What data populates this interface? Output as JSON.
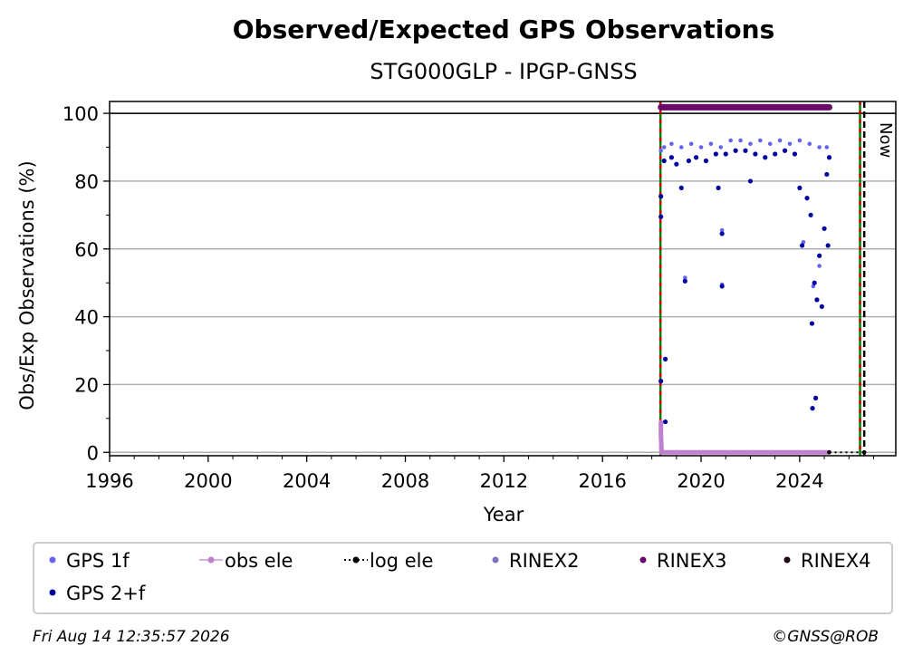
{
  "chart_data": {
    "type": "scatter",
    "title": "Observed/Expected GPS Observations",
    "subtitle": "STG000GLP - IPGP-GNSS",
    "xlabel": "Year",
    "ylabel": "Obs/Exp Observations (%)",
    "xlim": [
      1996,
      2027.9
    ],
    "ylim": [
      -1,
      103.5
    ],
    "x_ticks": [
      1996,
      2000,
      2004,
      2008,
      2012,
      2016,
      2020,
      2024
    ],
    "y_ticks": [
      0,
      20,
      40,
      60,
      80,
      100
    ],
    "grid": "y",
    "reference_line_y": 100,
    "vertical_markers": [
      {
        "x": 2018.35,
        "style": "green-red dashed"
      },
      {
        "x": 2026.45,
        "style": "green-red dashed"
      },
      {
        "x": 2026.62,
        "style": "black dashed",
        "label": "Now"
      }
    ],
    "legend_position": "bottom",
    "series": [
      {
        "name": "GPS 1f",
        "color": "#6464f0",
        "marker": "dot",
        "points": [
          [
            2018.37,
            89
          ],
          [
            2018.5,
            90
          ],
          [
            2018.8,
            91
          ],
          [
            2019.2,
            90
          ],
          [
            2019.6,
            91
          ],
          [
            2020.0,
            90
          ],
          [
            2020.4,
            91
          ],
          [
            2020.8,
            90
          ],
          [
            2021.2,
            92
          ],
          [
            2021.6,
            92
          ],
          [
            2022.0,
            91
          ],
          [
            2022.4,
            92
          ],
          [
            2022.8,
            91
          ],
          [
            2023.2,
            92
          ],
          [
            2023.6,
            91
          ],
          [
            2024.0,
            92
          ],
          [
            2024.4,
            91
          ],
          [
            2024.8,
            90
          ],
          [
            2025.1,
            90
          ],
          [
            2019.35,
            51.5
          ],
          [
            2020.85,
            65.5
          ],
          [
            2020.85,
            49.5
          ],
          [
            2024.15,
            62
          ],
          [
            2024.55,
            49
          ],
          [
            2024.8,
            55
          ]
        ]
      },
      {
        "name": "GPS 2+f",
        "color": "#0000a0",
        "marker": "dot",
        "points": [
          [
            2018.37,
            75.5
          ],
          [
            2018.37,
            69.5
          ],
          [
            2018.37,
            21
          ],
          [
            2018.55,
            27.5
          ],
          [
            2018.55,
            9
          ],
          [
            2018.5,
            86
          ],
          [
            2018.8,
            87
          ],
          [
            2019.0,
            85
          ],
          [
            2019.2,
            78
          ],
          [
            2019.35,
            50.5
          ],
          [
            2019.5,
            86
          ],
          [
            2019.8,
            87
          ],
          [
            2020.2,
            86
          ],
          [
            2020.6,
            88
          ],
          [
            2020.7,
            78
          ],
          [
            2020.85,
            64.5
          ],
          [
            2020.85,
            49
          ],
          [
            2021.0,
            88
          ],
          [
            2021.4,
            89
          ],
          [
            2021.8,
            89
          ],
          [
            2022.0,
            80
          ],
          [
            2022.2,
            88
          ],
          [
            2022.6,
            87
          ],
          [
            2023.0,
            88
          ],
          [
            2023.4,
            89
          ],
          [
            2023.8,
            88
          ],
          [
            2024.0,
            78
          ],
          [
            2024.1,
            61
          ],
          [
            2024.3,
            75
          ],
          [
            2024.45,
            70
          ],
          [
            2024.5,
            38
          ],
          [
            2024.52,
            13
          ],
          [
            2024.6,
            50
          ],
          [
            2024.65,
            16
          ],
          [
            2024.7,
            45
          ],
          [
            2024.8,
            58
          ],
          [
            2024.9,
            43
          ],
          [
            2025.0,
            66
          ],
          [
            2025.1,
            82
          ],
          [
            2025.15,
            61
          ],
          [
            2025.2,
            87
          ]
        ]
      },
      {
        "name": "obs ele",
        "color": "#c080d0",
        "marker": "dot-line",
        "points": [
          [
            2018.37,
            9
          ],
          [
            2018.37,
            5
          ],
          [
            2018.4,
            0
          ],
          [
            2019.0,
            0
          ],
          [
            2020.0,
            0
          ],
          [
            2021.0,
            0
          ],
          [
            2022.0,
            0
          ],
          [
            2023.0,
            0
          ],
          [
            2024.0,
            0
          ],
          [
            2025.2,
            0
          ]
        ]
      },
      {
        "name": "log ele",
        "color": "#000000",
        "marker": "dot-dotted-line",
        "points": [
          [
            2025.2,
            0
          ],
          [
            2026.62,
            0
          ]
        ]
      },
      {
        "name": "RINEX2",
        "color": "#8070c0",
        "marker": "dot",
        "points": []
      },
      {
        "name": "RINEX3",
        "color": "#6a0a6a",
        "marker": "dot",
        "points": [
          [
            2018.37,
            101.8
          ],
          [
            2025.2,
            101.8
          ]
        ]
      },
      {
        "name": "RINEX4",
        "color": "#1a0010",
        "marker": "dot",
        "points": []
      }
    ],
    "legend": [
      {
        "label": "GPS 1f",
        "color": "#6464f0",
        "kind": "dot"
      },
      {
        "label": "obs ele",
        "color": "#c080d0",
        "kind": "dot-line"
      },
      {
        "label": "log ele",
        "color": "#000000",
        "kind": "dot-dotted-line"
      },
      {
        "label": "RINEX2",
        "color": "#8070c0",
        "kind": "dot"
      },
      {
        "label": "RINEX3",
        "color": "#6a0a6a",
        "kind": "dot"
      },
      {
        "label": "RINEX4",
        "color": "#1a0010",
        "kind": "dot"
      },
      {
        "label": "GPS 2+f",
        "color": "#0000a0",
        "kind": "dot"
      }
    ]
  },
  "footer": {
    "timestamp": "Fri Aug 14 12:35:57 2026",
    "credit": "©GNSS@ROB"
  }
}
